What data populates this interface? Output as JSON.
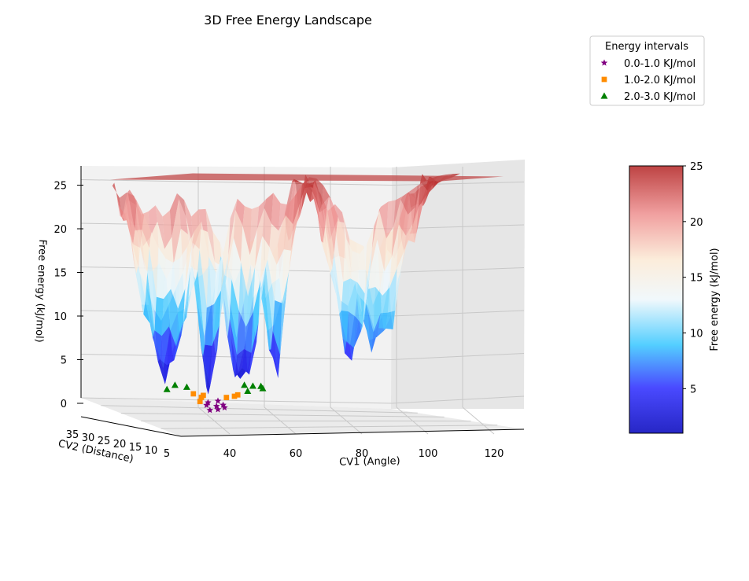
{
  "chart_data": {
    "type": "surface",
    "title": "3D Free Energy Landscape",
    "xlabel": "CV1 (Angle)",
    "ylabel": "CV2 (Distance)",
    "zlabel": "Free energy (kJ/mol)",
    "x_ticks": [
      40,
      60,
      80,
      100,
      120
    ],
    "y_ticks": [
      35,
      30,
      25,
      20,
      15,
      10,
      5
    ],
    "z_ticks": [
      0,
      5,
      10,
      15,
      20,
      25
    ],
    "zlim": [
      -1.5,
      27
    ],
    "grid": true,
    "surface": {
      "colormap": "blue-white-red",
      "max_value": 25,
      "basins": [
        {
          "cv1": 50,
          "min_energy": 0.0
        },
        {
          "cv1": 61,
          "min_energy": 0.8
        },
        {
          "cv1": 37,
          "min_energy": 2.5
        },
        {
          "cv1": 71,
          "min_energy": 3.2
        },
        {
          "cv1": 93,
          "min_energy": 4.5
        },
        {
          "cv1": 102,
          "min_energy": 5.8
        }
      ]
    },
    "legend": {
      "title": "Energy intervals",
      "position": "top-right",
      "entries": [
        {
          "label": "0.0-1.0 KJ/mol",
          "marker": "star",
          "color": "#800080"
        },
        {
          "label": "1.0-2.0 KJ/mol",
          "marker": "square",
          "color": "#ff8c00"
        },
        {
          "label": "2.0-3.0 KJ/mol",
          "marker": "triangle",
          "color": "#008000"
        }
      ]
    },
    "scatter_series": [
      {
        "name": "0.0-1.0 KJ/mol",
        "points": [
          [
            49,
            0.2
          ],
          [
            50,
            0.1
          ],
          [
            51,
            0.3
          ],
          [
            52,
            0.5
          ],
          [
            48,
            0.6
          ],
          [
            50,
            0.9
          ],
          [
            53,
            0.8
          ],
          [
            47,
            0.9
          ]
        ]
      },
      {
        "name": "1.0-2.0 KJ/mol",
        "points": [
          [
            46,
            1.2
          ],
          [
            45,
            1.5
          ],
          [
            54,
            1.3
          ],
          [
            55,
            1.8
          ],
          [
            44,
            1.9
          ],
          [
            56,
            1.6
          ],
          [
            47,
            1.9
          ]
        ]
      },
      {
        "name": "2.0-3.0 KJ/mol",
        "points": [
          [
            36,
            2.6
          ],
          [
            37,
            2.9
          ],
          [
            42,
            2.5
          ],
          [
            59,
            2.4
          ],
          [
            62,
            2.8
          ],
          [
            63,
            2.6
          ],
          [
            65,
            2.7
          ],
          [
            58,
            2.9
          ]
        ]
      }
    ],
    "colorbar": {
      "label": "Free energy (kJ/mol)",
      "ticks": [
        5,
        10,
        15,
        20,
        25
      ],
      "range": [
        1,
        25
      ]
    }
  }
}
